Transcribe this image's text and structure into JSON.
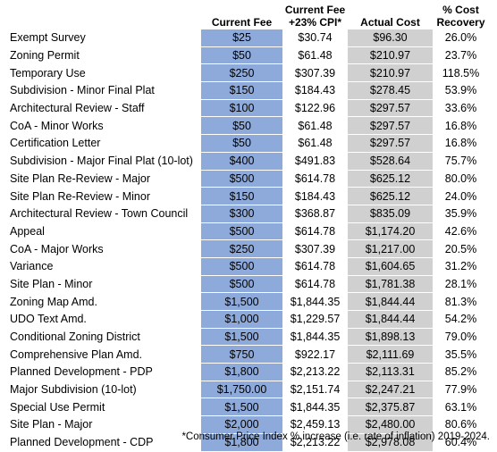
{
  "table": {
    "headers": [
      [
        "Current Fee"
      ],
      [
        "Current Fee",
        "+23% CPI*"
      ],
      [
        "Actual Cost"
      ],
      [
        "% Cost",
        "Recovery"
      ]
    ],
    "rows": [
      [
        "Exempt Survey",
        "$25",
        "$30.74",
        "$96.30",
        "26.0%"
      ],
      [
        "Zoning Permit",
        "$50",
        "$61.48",
        "$210.97",
        "23.7%"
      ],
      [
        "Temporary Use",
        "$250",
        "$307.39",
        "$210.97",
        "118.5%"
      ],
      [
        "Subdivision - Minor Final Plat",
        "$150",
        "$184.43",
        "$278.45",
        "53.9%"
      ],
      [
        "Architectural Review - Staff",
        "$100",
        "$122.96",
        "$297.57",
        "33.6%"
      ],
      [
        "CoA - Minor Works",
        "$50",
        "$61.48",
        "$297.57",
        "16.8%"
      ],
      [
        "Certification Letter",
        "$50",
        "$61.48",
        "$297.57",
        "16.8%"
      ],
      [
        "Subdivision - Major Final Plat (10-lot)",
        "$400",
        "$491.83",
        "$528.64",
        "75.7%"
      ],
      [
        "Site Plan Re-Review - Major",
        "$500",
        "$614.78",
        "$625.12",
        "80.0%"
      ],
      [
        "Site Plan Re-Review - Minor",
        "$150",
        "$184.43",
        "$625.12",
        "24.0%"
      ],
      [
        "Architectural Review - Town Council",
        "$300",
        "$368.87",
        "$835.09",
        "35.9%"
      ],
      [
        "Appeal",
        "$500",
        "$614.78",
        "$1,174.20",
        "42.6%"
      ],
      [
        "CoA - Major Works",
        "$250",
        "$307.39",
        "$1,217.00",
        "20.5%"
      ],
      [
        "Variance",
        "$500",
        "$614.78",
        "$1,604.65",
        "31.2%"
      ],
      [
        "Site Plan - Minor",
        "$500",
        "$614.78",
        "$1,781.38",
        "28.1%"
      ],
      [
        "Zoning Map Amd.",
        "$1,500",
        "$1,844.35",
        "$1,844.44",
        "81.3%"
      ],
      [
        "UDO Text Amd.",
        "$1,000",
        "$1,229.57",
        "$1,844.44",
        "54.2%"
      ],
      [
        "Conditional Zoning District",
        "$1,500",
        "$1,844.35",
        "$1,898.13",
        "79.0%"
      ],
      [
        "Comprehensive Plan Amd.",
        "$750",
        "$922.17",
        "$2,111.69",
        "35.5%"
      ],
      [
        "Planned Development - PDP",
        "$1,800",
        "$2,213.22",
        "$2,113.31",
        "85.2%"
      ],
      [
        "Major Subdivision (10-lot)",
        "$1,750.00",
        "$2,151.74",
        "$2,247.21",
        "77.9%"
      ],
      [
        "Special Use Permit",
        "$1,500",
        "$1,844.35",
        "$2,375.87",
        "63.1%"
      ],
      [
        "Site Plan - Major",
        "$2,000",
        "$2,459.13",
        "$2,480.00",
        "80.6%"
      ],
      [
        "Planned Development - CDP",
        "$1,800",
        "$2,213.22",
        "$2,978.08",
        "60.4%"
      ]
    ]
  },
  "footnote": "*Consumer Price Index % increase (i.e. rate of inflation) 2019-2024."
}
